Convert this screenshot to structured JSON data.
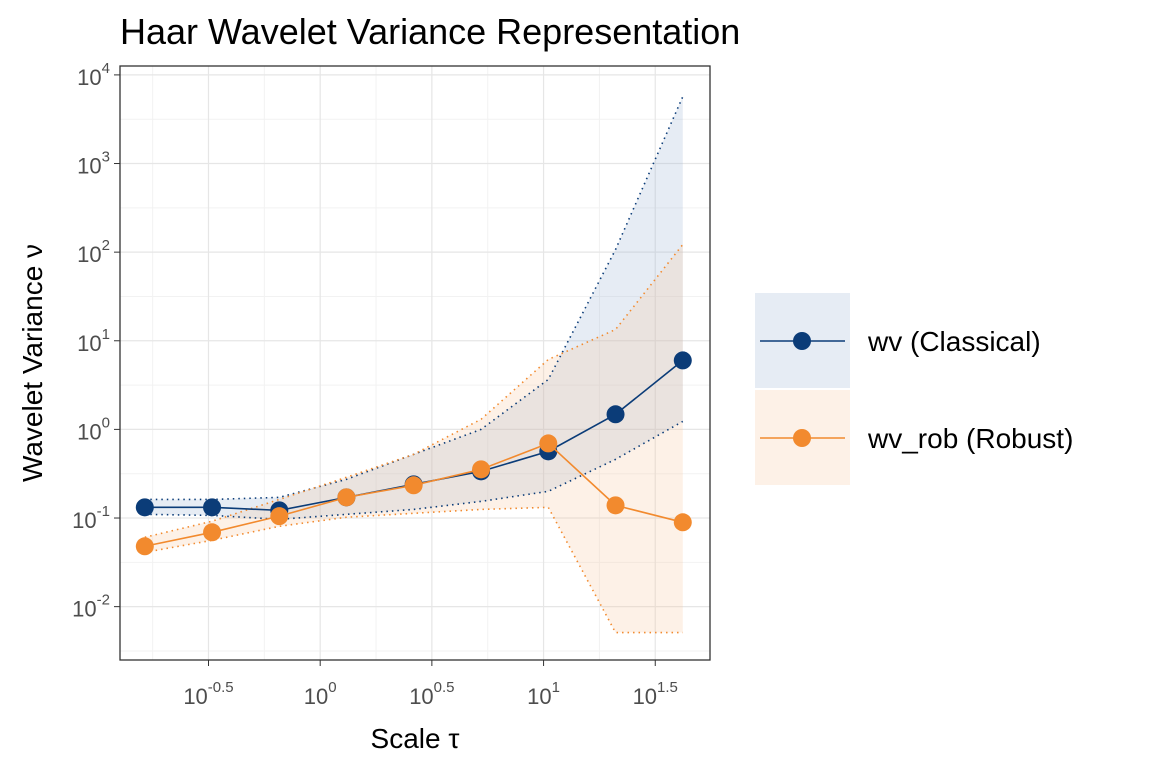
{
  "chart_data": {
    "type": "line",
    "title": "Haar Wavelet Variance Representation",
    "x_label": "Scale τ",
    "y_label": "Wavelet Variance ν",
    "xscale": "log",
    "yscale": "log",
    "grid": true,
    "legend": "right",
    "x": [
      0.164,
      0.328,
      0.656,
      1.31,
      2.62,
      5.25,
      10.5,
      21,
      42
    ],
    "series": [
      {
        "name": "wv (Classical)",
        "color": "#0b3c78",
        "fill": "#9db3d4",
        "values": [
          0.132,
          0.132,
          0.122,
          0.171,
          0.24,
          0.336,
          0.565,
          1.48,
          6.0
        ],
        "upper": [
          0.162,
          0.162,
          0.171,
          0.273,
          0.523,
          1.0,
          3.66,
          107,
          5680
        ],
        "lower": [
          0.11,
          0.107,
          0.0966,
          0.11,
          0.125,
          0.154,
          0.2,
          0.459,
          1.23
        ]
      },
      {
        "name": "wv_rob (Robust)",
        "color": "#f28a2e",
        "fill": "#f9c89e",
        "values": [
          0.048,
          0.069,
          0.105,
          0.171,
          0.234,
          0.354,
          0.695,
          0.139,
          0.0895
        ],
        "upper": [
          0.0606,
          0.092,
          0.162,
          0.288,
          0.523,
          1.3,
          6.15,
          13.4,
          122
        ],
        "lower": [
          0.041,
          0.056,
          0.0806,
          0.102,
          0.113,
          0.125,
          0.132,
          0.0051,
          0.0051
        ]
      }
    ],
    "xlim": [
      0.127,
      55.6
    ],
    "ylim": [
      0.0025,
      12600
    ],
    "xticks": [
      {
        "value": 0.3162,
        "label": "10",
        "exponent": "-0.5"
      },
      {
        "value": 1,
        "label": "10",
        "exponent": "0"
      },
      {
        "value": 3.162,
        "label": "10",
        "exponent": "0.5"
      },
      {
        "value": 10,
        "label": "10",
        "exponent": "1"
      },
      {
        "value": 31.62,
        "label": "10",
        "exponent": "1.5"
      }
    ],
    "yticks": [
      {
        "value": 0.01,
        "label": "10",
        "exponent": "-2"
      },
      {
        "value": 0.1,
        "label": "10",
        "exponent": "-1"
      },
      {
        "value": 1,
        "label": "10",
        "exponent": "0"
      },
      {
        "value": 10,
        "label": "10",
        "exponent": "1"
      },
      {
        "value": 100,
        "label": "10",
        "exponent": "2"
      },
      {
        "value": 1000,
        "label": "10",
        "exponent": "3"
      },
      {
        "value": 10000,
        "label": "10",
        "exponent": "4"
      }
    ]
  }
}
